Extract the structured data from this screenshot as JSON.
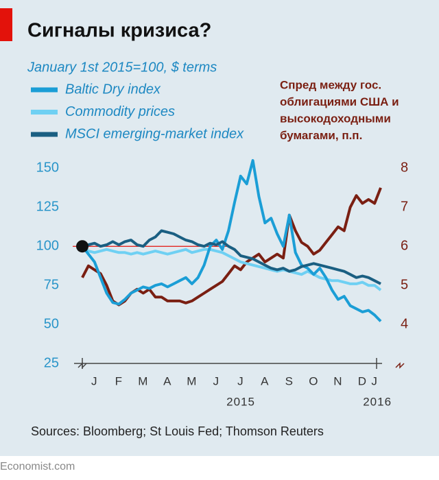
{
  "chart_data": {
    "type": "line",
    "title": "Сигналы кризиса?",
    "subtitle": "January 1st 2015=100, $ terms",
    "annotation_lines": [
      "Спред между гос.",
      "облигациями США и",
      "высокодоходными",
      "бумагами, п.п."
    ],
    "source": "Sources: Bloomberg; St Louis Fed; Thomson Reuters",
    "footer": "Economist.com",
    "year_labels": [
      "2015",
      "2016"
    ],
    "categories": [
      null,
      null,
      "J",
      null,
      null,
      null,
      "F",
      null,
      null,
      null,
      "M",
      null,
      null,
      null,
      "A",
      null,
      null,
      null,
      "M",
      null,
      null,
      null,
      "J",
      null,
      null,
      null,
      "J",
      null,
      null,
      null,
      "A",
      null,
      null,
      null,
      "S",
      null,
      null,
      null,
      "O",
      null,
      null,
      null,
      "N",
      null,
      null,
      null,
      "D",
      null,
      "J",
      null
    ],
    "ylim": [
      25,
      155
    ],
    "yticks": [
      25,
      50,
      75,
      100,
      125,
      150
    ],
    "y2lim": [
      3,
      8.2
    ],
    "y2ticks": [
      4,
      5,
      6,
      7,
      8
    ],
    "reference_line": 100,
    "series": [
      {
        "name": "Baltic Dry index",
        "color": "#1b9ed6",
        "values": [
          100,
          95,
          90,
          80,
          70,
          64,
          63,
          66,
          70,
          72,
          74,
          73,
          75,
          76,
          74,
          76,
          78,
          80,
          76,
          80,
          88,
          100,
          104,
          98,
          110,
          128,
          145,
          140,
          155,
          132,
          115,
          118,
          108,
          100,
          120,
          96,
          88,
          86,
          82,
          86,
          80,
          72,
          66,
          68,
          62,
          60,
          58,
          59,
          56,
          52
        ]
      },
      {
        "name": "Commodity prices",
        "color": "#6fd0f3",
        "values": [
          100,
          97,
          96,
          97,
          98,
          97,
          96,
          96,
          95,
          96,
          95,
          96,
          97,
          96,
          95,
          96,
          97,
          98,
          96,
          97,
          98,
          98,
          97,
          96,
          94,
          92,
          90,
          89,
          88,
          87,
          86,
          85,
          84,
          85,
          84,
          83,
          82,
          84,
          82,
          80,
          79,
          78,
          78,
          77,
          76,
          76,
          77,
          75,
          75,
          72
        ]
      },
      {
        "name": "MSCI emerging-market index",
        "color": "#1a5f82",
        "values": [
          100,
          101,
          102,
          100,
          101,
          103,
          101,
          103,
          104,
          101,
          100,
          104,
          106,
          110,
          109,
          108,
          106,
          104,
          103,
          101,
          100,
          102,
          101,
          103,
          100,
          98,
          94,
          93,
          92,
          90,
          88,
          86,
          85,
          86,
          84,
          85,
          87,
          88,
          89,
          88,
          87,
          86,
          85,
          84,
          82,
          80,
          81,
          80,
          78,
          76
        ]
      },
      {
        "axis": "y2",
        "color": "#7a1f12",
        "values": [
          5.2,
          5.5,
          5.4,
          5.3,
          5.0,
          4.6,
          4.5,
          4.6,
          4.8,
          4.9,
          4.8,
          4.9,
          4.7,
          4.7,
          4.6,
          4.6,
          4.6,
          4.55,
          4.6,
          4.7,
          4.8,
          4.9,
          5.0,
          5.1,
          5.3,
          5.5,
          5.4,
          5.6,
          5.7,
          5.8,
          5.6,
          5.7,
          5.8,
          5.7,
          6.8,
          6.4,
          6.1,
          6.0,
          5.8,
          5.9,
          6.1,
          6.3,
          6.5,
          6.4,
          7.0,
          7.3,
          7.1,
          7.2,
          7.1,
          7.5
        ]
      }
    ]
  }
}
